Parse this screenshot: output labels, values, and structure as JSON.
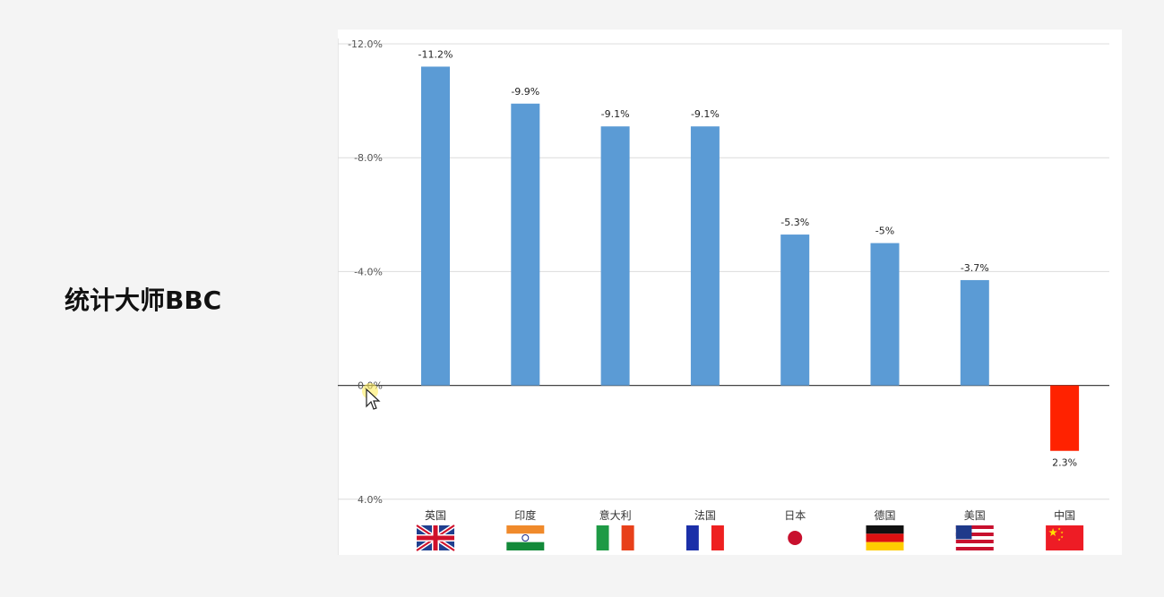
{
  "watermark": "统计大师BBC",
  "chart_data": {
    "type": "bar",
    "categories": [
      "英国",
      "印度",
      "意大利",
      "法国",
      "日本",
      "德国",
      "美国",
      "中国"
    ],
    "values": [
      -11.2,
      -9.9,
      -9.1,
      -9.1,
      -5.3,
      -5.0,
      -3.7,
      2.3
    ],
    "data_labels": [
      "-11.2%",
      "-9.9%",
      "-9.1%",
      "-9.1%",
      "-5.3%",
      "-5%",
      "-3.7%",
      "2.3%"
    ],
    "y_ticks": [
      -12,
      -8,
      -4,
      0,
      4
    ],
    "y_tick_labels": [
      "-12.0%",
      "-8.0%",
      "-4.0%",
      "0.0%",
      "4.0%"
    ],
    "ylim": [
      4,
      -12
    ],
    "y_axis_reversed": true,
    "grid": true,
    "colors": {
      "negative": "#5b9bd5",
      "positive": "#ff2200"
    },
    "flags": [
      "uk-flag",
      "india-flag",
      "italy-flag",
      "france-flag",
      "japan-flag",
      "germany-flag",
      "usa-flag",
      "china-flag"
    ]
  }
}
